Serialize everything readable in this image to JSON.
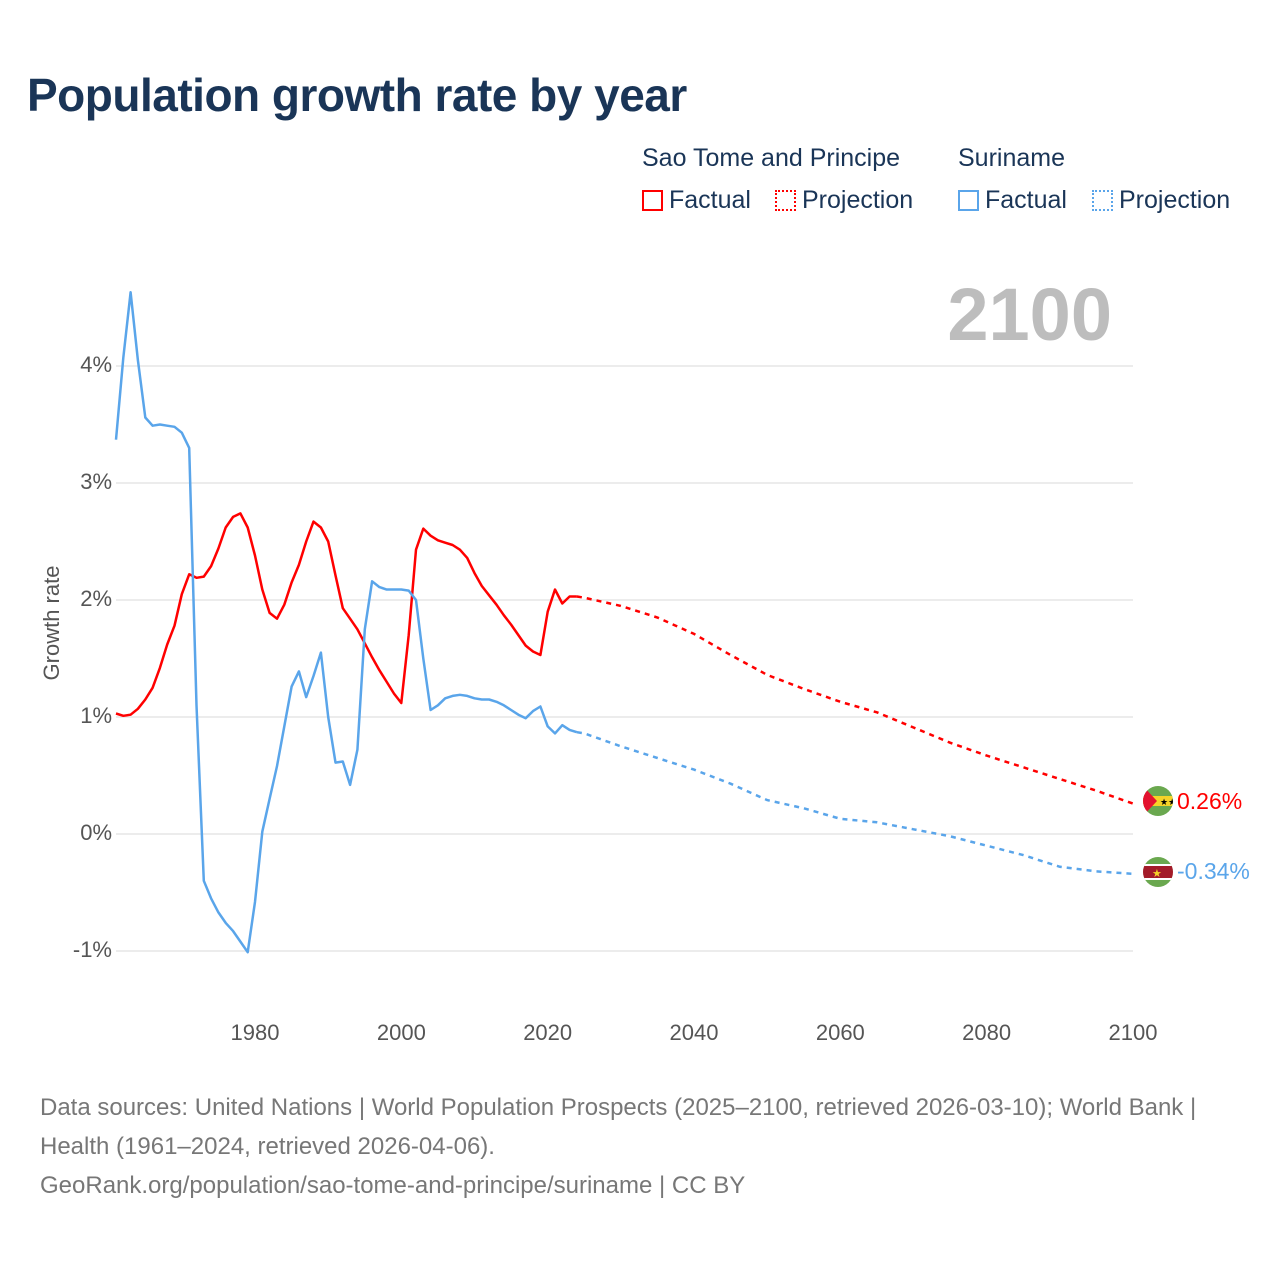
{
  "title": "Population growth rate by year",
  "current_year_label": "2100",
  "legend": {
    "groups": [
      {
        "country": "Sao Tome and Principe",
        "factual": "Factual",
        "projection": "Projection",
        "color": "#ff0000"
      },
      {
        "country": "Suriname",
        "factual": "Factual",
        "projection": "Projection",
        "color": "#5aa5ea"
      }
    ]
  },
  "end_labels": {
    "sao_tome": "0.26%",
    "suriname": "-0.34%"
  },
  "footer": {
    "line1": "Data sources: United Nations | World Population Prospects (2025–2100, retrieved 2026-03-10); World Bank | Health (1961–2024, retrieved 2026-04-06).",
    "line2": "GeoRank.org/population/sao-tome-and-principe/suriname | CC BY"
  },
  "chart_data": {
    "type": "line",
    "title": "Population growth rate by year",
    "xlabel": "",
    "ylabel": "Growth rate",
    "xlim": [
      1961,
      2100
    ],
    "ylim": [
      -1.5,
      4.8
    ],
    "x_ticks": [
      "1980",
      "2000",
      "2020",
      "2040",
      "2060",
      "2080",
      "2100"
    ],
    "x_tick_values": [
      1980,
      2000,
      2020,
      2040,
      2060,
      2080,
      2100
    ],
    "y_ticks": [
      "-1%",
      "0%",
      "1%",
      "2%",
      "3%",
      "4%"
    ],
    "y_tick_values": [
      -1,
      0,
      1,
      2,
      3,
      4
    ],
    "grid": true,
    "legend_position": "top-right",
    "series": [
      {
        "name": "Sao Tome and Principe",
        "color": "#ff0000",
        "factual": {
          "start_year": 1961,
          "values": [
            1.03,
            1.01,
            1.02,
            1.07,
            1.15,
            1.25,
            1.42,
            1.62,
            1.78,
            2.05,
            2.22,
            2.19,
            2.2,
            2.29,
            2.44,
            2.62,
            2.71,
            2.74,
            2.62,
            2.38,
            2.09,
            1.89,
            1.84,
            1.96,
            2.15,
            2.3,
            2.5,
            2.67,
            2.62,
            2.5,
            2.21,
            1.93,
            1.84,
            1.75,
            1.63,
            1.51,
            1.4,
            1.3,
            1.2,
            1.12,
            1.7,
            2.43,
            2.61,
            2.55,
            2.51,
            2.49,
            2.47,
            2.43,
            2.36,
            2.23,
            2.12,
            2.04,
            1.96,
            1.87,
            1.79,
            1.7,
            1.61,
            1.56,
            1.53,
            1.9,
            2.09,
            1.97,
            2.03,
            2.03
          ]
        },
        "projection": {
          "years": [
            2024,
            2025,
            2030,
            2035,
            2040,
            2045,
            2050,
            2055,
            2060,
            2065,
            2070,
            2075,
            2080,
            2085,
            2090,
            2095,
            2100
          ],
          "values": [
            2.03,
            2.02,
            1.95,
            1.85,
            1.71,
            1.53,
            1.36,
            1.24,
            1.13,
            1.04,
            0.91,
            0.78,
            0.67,
            0.57,
            0.47,
            0.37,
            0.26
          ]
        }
      },
      {
        "name": "Suriname",
        "color": "#5aa5ea",
        "factual": {
          "start_year": 1961,
          "values": [
            3.37,
            4.07,
            4.63,
            4.05,
            3.56,
            3.49,
            3.5,
            3.49,
            3.48,
            3.43,
            3.3,
            1.1,
            -0.4,
            -0.55,
            -0.67,
            -0.76,
            -0.83,
            -0.92,
            -1.01,
            -0.58,
            0.02,
            0.3,
            0.58,
            0.92,
            1.26,
            1.39,
            1.17,
            1.35,
            1.55,
            1.0,
            0.61,
            0.62,
            0.42,
            0.72,
            1.75,
            2.16,
            2.11,
            2.09,
            2.09,
            2.09,
            2.08,
            2.0,
            1.5,
            1.06,
            1.1,
            1.16,
            1.18,
            1.19,
            1.18,
            1.16,
            1.15,
            1.15,
            1.13,
            1.1,
            1.06,
            1.02,
            0.99,
            1.05,
            1.09,
            0.92,
            0.86,
            0.93,
            0.89,
            0.87
          ]
        },
        "projection": {
          "years": [
            2024,
            2025,
            2030,
            2035,
            2040,
            2045,
            2050,
            2055,
            2060,
            2065,
            2070,
            2075,
            2080,
            2085,
            2090,
            2095,
            2100
          ],
          "values": [
            0.87,
            0.86,
            0.75,
            0.65,
            0.55,
            0.43,
            0.29,
            0.22,
            0.13,
            0.1,
            0.04,
            -0.02,
            -0.1,
            -0.18,
            -0.28,
            -0.32,
            -0.34
          ]
        }
      }
    ]
  }
}
